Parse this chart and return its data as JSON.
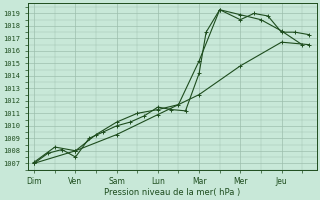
{
  "bg_color": "#c8e8d8",
  "grid_color": "#9dbfad",
  "line_color": "#1e4d1e",
  "text_color": "#1e4d1e",
  "xlabel": "Pression niveau de la mer( hPa )",
  "ylim": [
    1006.5,
    1019.8
  ],
  "yticks": [
    1007,
    1008,
    1009,
    1010,
    1011,
    1012,
    1013,
    1014,
    1015,
    1016,
    1017,
    1018,
    1019
  ],
  "xtick_labels": [
    "Dim",
    "Ven",
    "Sam",
    "Lun",
    "Mar",
    "Mer",
    "Jeu"
  ],
  "xtick_positions": [
    0,
    1,
    2,
    3,
    4,
    5,
    6
  ],
  "xlim": [
    -0.15,
    6.85
  ],
  "series1_x": [
    0,
    0.33,
    0.67,
    1.0,
    1.33,
    1.67,
    2.0,
    2.33,
    2.67,
    3.0,
    3.33,
    3.67,
    4.0,
    4.17,
    4.5,
    5.0,
    5.33,
    5.67,
    6.0,
    6.33,
    6.67
  ],
  "series1_y": [
    1007.0,
    1007.8,
    1008.1,
    1007.5,
    1009.0,
    1009.5,
    1010.0,
    1010.3,
    1010.8,
    1011.5,
    1011.3,
    1011.2,
    1014.2,
    1017.5,
    1019.3,
    1018.5,
    1019.0,
    1018.8,
    1017.5,
    1017.5,
    1017.3
  ],
  "series2_x": [
    0,
    0.5,
    1.0,
    1.5,
    2.0,
    2.5,
    3.0,
    3.5,
    4.0,
    4.5,
    5.0,
    5.5,
    6.0,
    6.5
  ],
  "series2_y": [
    1007.1,
    1008.3,
    1008.0,
    1009.3,
    1010.3,
    1011.0,
    1011.3,
    1011.7,
    1015.2,
    1019.3,
    1018.9,
    1018.5,
    1017.6,
    1016.5
  ],
  "series3_x": [
    0,
    1.0,
    2.0,
    3.0,
    4.0,
    5.0,
    6.0,
    6.67
  ],
  "series3_y": [
    1007.0,
    1008.0,
    1009.3,
    1010.9,
    1012.5,
    1014.8,
    1016.7,
    1016.5
  ]
}
